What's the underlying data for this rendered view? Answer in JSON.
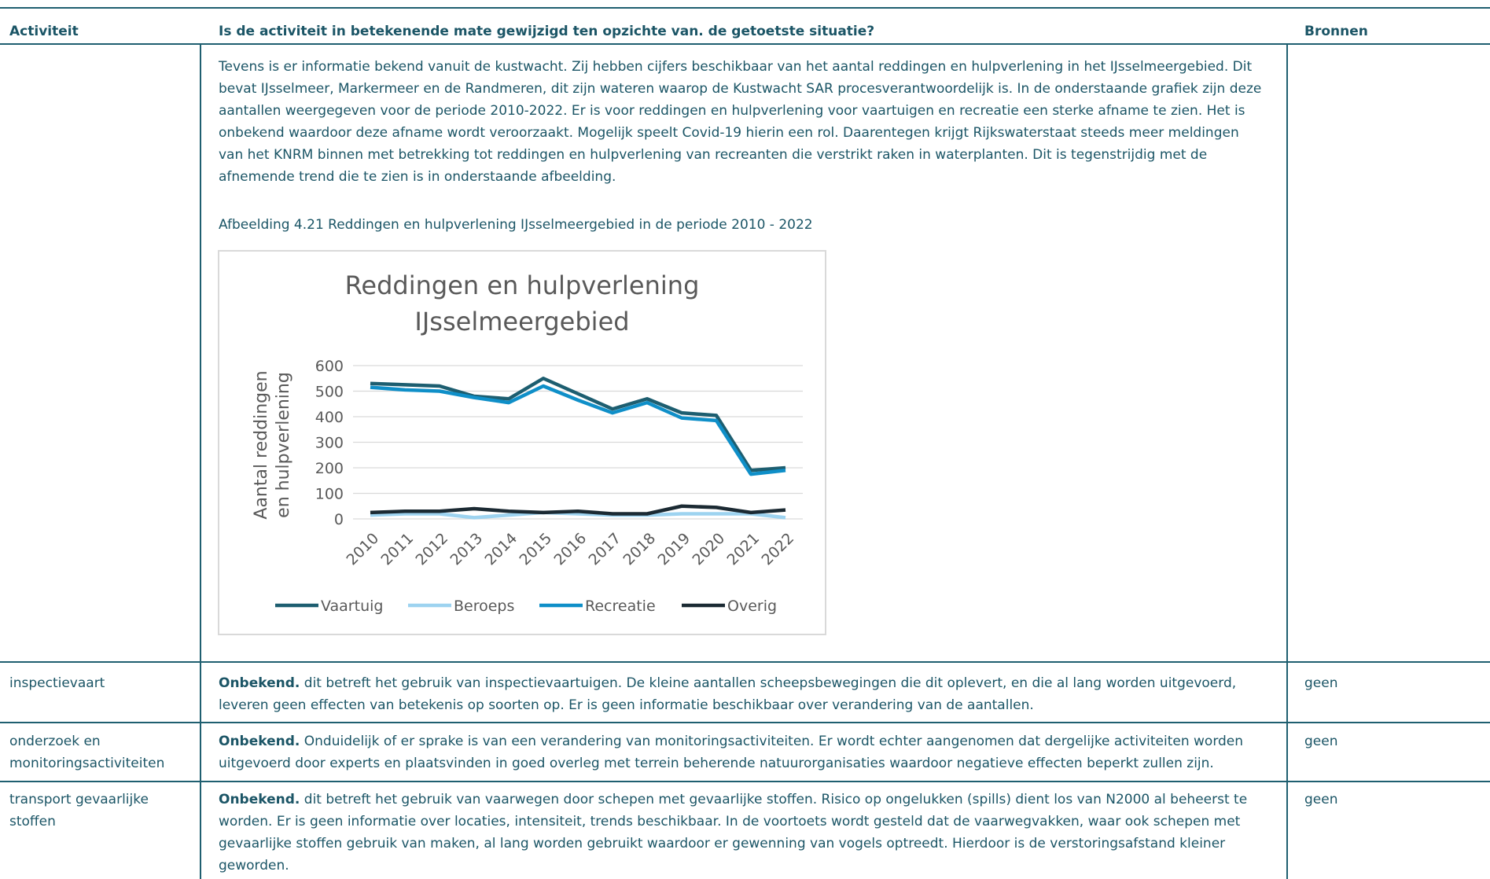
{
  "table": {
    "header": [
      "Activiteit",
      "Is de activiteit in betekenende mate gewijzigd ten opzichte van. de getoetste situatie?",
      "Bronnen"
    ],
    "rows": [
      {
        "text": "Tevens is er informatie bekend vanuit de kustwacht. Zij hebben cijfers beschikbaar van het aantal reddingen en hulpverlening in het IJsselmeergebied. Dit bevat IJsselmeer, Markermeer en de Randmeren, dit zijn wateren waarop de Kustwacht SAR procesverantwoordelijk is. In de onderstaande grafiek zijn deze aantallen weergegeven voor de periode 2010-2022. Er is voor reddingen en hulpverlening voor vaartuigen en recreatie een sterke afname te zien. Het is onbekend waardoor deze afname wordt veroorzaakt. Mogelijk speelt Covid-19 hierin een rol. Daarentegen krijgt Rijkswaterstaat steeds meer meldingen van het KNRM binnen met betrekking tot reddingen en hulpverlening van recreanten die verstrikt raken in waterplanten. Dit is tegenstrijdig met de afnemende trend die te zien is in onderstaande afbeelding.",
        "caption": "Afbeelding 4.21 Reddingen en hulpverlening IJsselmeergebied in de periode 2010 - 2022"
      },
      {
        "activity": "inspectievaart",
        "status": "Onbekend.",
        "text": "dit betreft het gebruik van inspectievaartuigen. De kleine aantallen scheepsbewegingen die dit oplevert, en die al lang worden uitgevoerd, leveren geen effecten van betekenis op soorten op. Er is geen informatie beschikbaar over verandering van de aantallen.",
        "sources": "geen"
      },
      {
        "activity": "onderzoek en monitoringsactiviteiten",
        "status": "Onbekend.",
        "text": "Onduidelijk of er sprake is van een verandering van monitoringsactiviteiten. Er wordt echter aangenomen dat dergelijke activiteiten worden uitgevoerd door experts en plaatsvinden in goed overleg met terrein beherende natuurorganisaties waardoor negatieve effecten beperkt zullen zijn.",
        "sources": "geen"
      },
      {
        "activity": "transport gevaarlijke stoffen",
        "status": "Onbekend.",
        "text": "dit betreft het gebruik van vaarwegen door schepen met gevaarlijke stoffen. Risico op ongelukken (spills) dient los van N2000 al beheerst te worden. Er is geen informatie over locaties, intensiteit, trends beschikbaar. In de voortoets wordt gesteld dat de vaarwegvakken, waar ook schepen met gevaarlijke stoffen gebruik van maken, al lang worden gebruikt waardoor er gewenning van vogels optreedt. Hierdoor is de verstoringsafstand kleiner geworden.",
        "sources": "geen"
      }
    ]
  },
  "chart_data": {
    "type": "line",
    "title": "Reddingen en hulpverlening IJsselmeergebied",
    "y_label": "Aantal reddingen en hulpverlening",
    "categories": [
      "2010",
      "2011",
      "2012",
      "2013",
      "2014",
      "2015",
      "2016",
      "2017",
      "2018",
      "2019",
      "2020",
      "2021",
      "2022"
    ],
    "series": [
      {
        "name": "Vaartuig",
        "color": "#1d5e70",
        "values": [
          530,
          525,
          520,
          480,
          470,
          550,
          490,
          430,
          470,
          415,
          405,
          190,
          200
        ]
      },
      {
        "name": "Beroeps",
        "color": "#9dd3f0",
        "values": [
          15,
          20,
          20,
          5,
          15,
          25,
          20,
          15,
          15,
          20,
          20,
          20,
          5
        ]
      },
      {
        "name": "Recreatie",
        "color": "#0f8fc8",
        "values": [
          515,
          505,
          500,
          475,
          455,
          520,
          465,
          415,
          455,
          395,
          385,
          175,
          190
        ]
      },
      {
        "name": "Overig",
        "color": "#1b2a33",
        "values": [
          25,
          30,
          30,
          40,
          30,
          25,
          30,
          20,
          20,
          50,
          45,
          25,
          35
        ]
      }
    ],
    "ylim": [
      0,
      600
    ],
    "yticks": [
      0,
      100,
      200,
      300,
      400,
      500,
      600
    ],
    "grid": true,
    "legend": "bottom"
  }
}
